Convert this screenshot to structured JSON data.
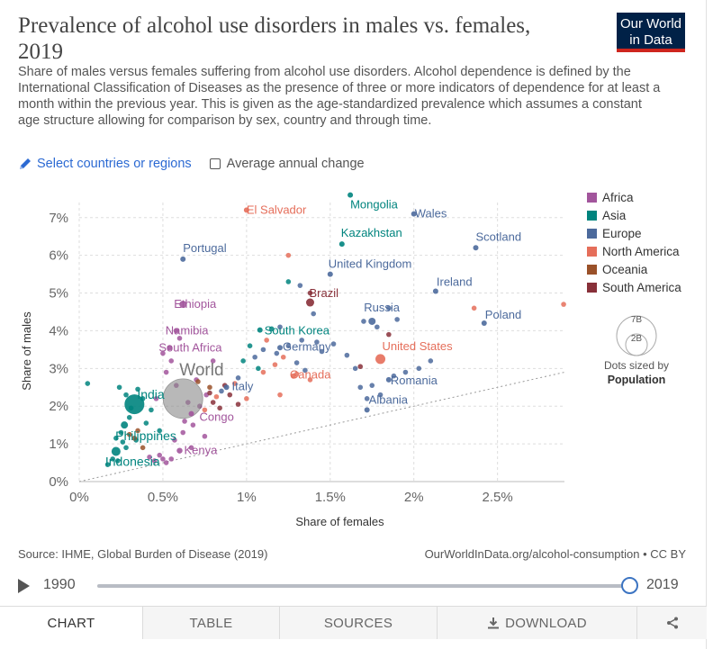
{
  "header": {
    "title": "Prevalence of alcohol use disorders in males vs. females, 2019",
    "subtitle": "Share of males versus females suffering from alcohol use disorders. Alcohol dependence is defined by the International Classification of Diseases as the presence of three or more indicators of dependence for at least a month within the previous year. This is given as the age-standardized prevalence which assumes a constant age structure allowing for comparison by sex, country and through time.",
    "logo_line1": "Our World",
    "logo_line2": "in Data"
  },
  "controls": {
    "select_label": "Select countries or regions",
    "select_icon": "pencil-icon",
    "average_change_label": "Average annual change",
    "average_change_checked": false
  },
  "chart_data": {
    "type": "scatter",
    "xlabel": "Share of females",
    "ylabel": "Share of males",
    "xlim": [
      0,
      2.9
    ],
    "ylim": [
      0,
      7.4
    ],
    "x_ticks": [
      {
        "v": 0,
        "label": "0%"
      },
      {
        "v": 0.5,
        "label": "0.5%"
      },
      {
        "v": 1,
        "label": "1%"
      },
      {
        "v": 1.5,
        "label": "1.5%"
      },
      {
        "v": 2,
        "label": "2%"
      },
      {
        "v": 2.5,
        "label": "2.5%"
      }
    ],
    "y_ticks": [
      {
        "v": 0,
        "label": "0%"
      },
      {
        "v": 1,
        "label": "1%"
      },
      {
        "v": 2,
        "label": "2%"
      },
      {
        "v": 3,
        "label": "3%"
      },
      {
        "v": 4,
        "label": "4%"
      },
      {
        "v": 5,
        "label": "5%"
      },
      {
        "v": 6,
        "label": "6%"
      },
      {
        "v": 7,
        "label": "7%"
      }
    ],
    "grid": true,
    "reference_line": "y = x (dotted diagonal)",
    "legend_position": "right",
    "legend": [
      {
        "name": "Africa",
        "color": "#a2559c"
      },
      {
        "name": "Asia",
        "color": "#00847e"
      },
      {
        "name": "Europe",
        "color": "#4c6a9c"
      },
      {
        "name": "North America",
        "color": "#e56e5a"
      },
      {
        "name": "Oceania",
        "color": "#9a5129"
      },
      {
        "name": "South America",
        "color": "#883039"
      }
    ],
    "size_legend": {
      "large_label": "7B",
      "small_label": "2B",
      "caption_line1": "Dots sized by",
      "caption_line2": "Population"
    },
    "labeled_points": [
      {
        "name": "World",
        "x": 0.62,
        "y": 2.2,
        "region": "World"
      },
      {
        "name": "India",
        "x": 0.33,
        "y": 2.05,
        "region": "Asia"
      },
      {
        "name": "Philippines",
        "x": 0.27,
        "y": 1.5,
        "region": "Asia"
      },
      {
        "name": "Indonesia",
        "x": 0.22,
        "y": 0.8,
        "region": "Asia"
      },
      {
        "name": "Kenya",
        "x": 0.6,
        "y": 0.82,
        "region": "Africa"
      },
      {
        "name": "Congo",
        "x": 0.67,
        "y": 1.8,
        "region": "Africa"
      },
      {
        "name": "Italy",
        "x": 0.88,
        "y": 2.5,
        "region": "Europe"
      },
      {
        "name": "South Africa",
        "x": 0.54,
        "y": 3.55,
        "region": "Africa"
      },
      {
        "name": "Namibia",
        "x": 0.58,
        "y": 4.0,
        "region": "Africa"
      },
      {
        "name": "Ethiopia",
        "x": 0.62,
        "y": 4.7,
        "region": "Africa"
      },
      {
        "name": "Portugal",
        "x": 0.62,
        "y": 5.9,
        "region": "Europe"
      },
      {
        "name": "El Salvador",
        "x": 1.0,
        "y": 7.2,
        "region": "North America"
      },
      {
        "name": "Mongolia",
        "x": 1.62,
        "y": 7.6,
        "region": "Asia"
      },
      {
        "name": "Wales",
        "x": 2.0,
        "y": 7.1,
        "region": "Europe"
      },
      {
        "name": "Kazakhstan",
        "x": 1.57,
        "y": 6.3,
        "region": "Asia"
      },
      {
        "name": "Scotland",
        "x": 2.37,
        "y": 6.2,
        "region": "Europe"
      },
      {
        "name": "United Kingdom",
        "x": 1.5,
        "y": 5.5,
        "region": "Europe"
      },
      {
        "name": "Ireland",
        "x": 2.13,
        "y": 5.05,
        "region": "Europe"
      },
      {
        "name": "Brazil",
        "x": 1.38,
        "y": 4.75,
        "region": "South America"
      },
      {
        "name": "Russia",
        "x": 1.75,
        "y": 4.25,
        "region": "Europe"
      },
      {
        "name": "Poland",
        "x": 2.42,
        "y": 4.2,
        "region": "Europe"
      },
      {
        "name": "South Korea",
        "x": 1.08,
        "y": 4.02,
        "region": "Asia"
      },
      {
        "name": "Germany",
        "x": 1.2,
        "y": 3.55,
        "region": "Europe"
      },
      {
        "name": "United States",
        "x": 1.8,
        "y": 3.25,
        "region": "North America"
      },
      {
        "name": "Canada",
        "x": 1.28,
        "y": 2.8,
        "region": "North America"
      },
      {
        "name": "Romania",
        "x": 1.85,
        "y": 2.7,
        "region": "Europe"
      },
      {
        "name": "Albania",
        "x": 1.72,
        "y": 1.9,
        "region": "Europe"
      }
    ],
    "unlabeled_points": [
      {
        "x": 0.05,
        "y": 2.6,
        "r": "Asia"
      },
      {
        "x": 0.24,
        "y": 2.5,
        "r": "Asia"
      },
      {
        "x": 0.28,
        "y": 2.3,
        "r": "Asia"
      },
      {
        "x": 0.35,
        "y": 2.45,
        "r": "Asia"
      },
      {
        "x": 0.38,
        "y": 2.2,
        "r": "Asia"
      },
      {
        "x": 0.31,
        "y": 1.95,
        "r": "Asia"
      },
      {
        "x": 0.22,
        "y": 1.15,
        "r": "Asia"
      },
      {
        "x": 0.25,
        "y": 1.3,
        "r": "Asia"
      },
      {
        "x": 0.28,
        "y": 0.9,
        "r": "Asia"
      },
      {
        "x": 0.2,
        "y": 0.6,
        "r": "Asia"
      },
      {
        "x": 0.17,
        "y": 0.45,
        "r": "Asia"
      },
      {
        "x": 0.23,
        "y": 0.55,
        "r": "Asia"
      },
      {
        "x": 0.4,
        "y": 1.55,
        "r": "Asia"
      },
      {
        "x": 0.48,
        "y": 1.35,
        "r": "Asia"
      },
      {
        "x": 0.3,
        "y": 1.7,
        "r": "Asia"
      },
      {
        "x": 0.43,
        "y": 1.9,
        "r": "Asia"
      },
      {
        "x": 0.34,
        "y": 1.1,
        "r": "Asia"
      },
      {
        "x": 0.26,
        "y": 1.05,
        "r": "Asia"
      },
      {
        "x": 1.15,
        "y": 4.05,
        "r": "Asia"
      },
      {
        "x": 1.02,
        "y": 3.6,
        "r": "Asia"
      },
      {
        "x": 0.98,
        "y": 3.2,
        "r": "Asia"
      },
      {
        "x": 1.25,
        "y": 5.3,
        "r": "Asia"
      },
      {
        "x": 1.07,
        "y": 3.0,
        "r": "Asia"
      },
      {
        "x": 0.5,
        "y": 0.6,
        "r": "Africa"
      },
      {
        "x": 0.45,
        "y": 0.55,
        "r": "Africa"
      },
      {
        "x": 0.52,
        "y": 0.5,
        "r": "Africa"
      },
      {
        "x": 0.48,
        "y": 0.7,
        "r": "Africa"
      },
      {
        "x": 0.55,
        "y": 0.6,
        "r": "Africa"
      },
      {
        "x": 0.42,
        "y": 0.65,
        "r": "Africa"
      },
      {
        "x": 0.57,
        "y": 1.1,
        "r": "Africa"
      },
      {
        "x": 0.62,
        "y": 1.3,
        "r": "Africa"
      },
      {
        "x": 0.68,
        "y": 1.5,
        "r": "Africa"
      },
      {
        "x": 0.58,
        "y": 2.55,
        "r": "Africa"
      },
      {
        "x": 0.52,
        "y": 2.9,
        "r": "Africa"
      },
      {
        "x": 0.55,
        "y": 3.2,
        "r": "Africa"
      },
      {
        "x": 0.6,
        "y": 3.8,
        "r": "Africa"
      },
      {
        "x": 0.65,
        "y": 2.1,
        "r": "Africa"
      },
      {
        "x": 0.72,
        "y": 2.0,
        "r": "Africa"
      },
      {
        "x": 0.5,
        "y": 3.4,
        "r": "Africa"
      },
      {
        "x": 0.7,
        "y": 2.7,
        "r": "Africa"
      },
      {
        "x": 0.76,
        "y": 2.3,
        "r": "Africa"
      },
      {
        "x": 0.46,
        "y": 2.2,
        "r": "Africa"
      },
      {
        "x": 0.8,
        "y": 3.2,
        "r": "Africa"
      },
      {
        "x": 0.63,
        "y": 1.6,
        "r": "Africa"
      },
      {
        "x": 0.75,
        "y": 1.2,
        "r": "Africa"
      },
      {
        "x": 0.67,
        "y": 0.9,
        "r": "Africa"
      },
      {
        "x": 1.32,
        "y": 5.2,
        "r": "Europe"
      },
      {
        "x": 1.4,
        "y": 4.45,
        "r": "Europe"
      },
      {
        "x": 1.2,
        "y": 4.1,
        "r": "Europe"
      },
      {
        "x": 1.33,
        "y": 3.75,
        "r": "Europe"
      },
      {
        "x": 1.1,
        "y": 3.5,
        "r": "Europe"
      },
      {
        "x": 1.05,
        "y": 3.3,
        "r": "Europe"
      },
      {
        "x": 1.18,
        "y": 3.4,
        "r": "Europe"
      },
      {
        "x": 0.95,
        "y": 2.75,
        "r": "Europe"
      },
      {
        "x": 0.85,
        "y": 2.4,
        "r": "Europe"
      },
      {
        "x": 1.25,
        "y": 3.6,
        "r": "Europe"
      },
      {
        "x": 1.45,
        "y": 3.45,
        "r": "Europe"
      },
      {
        "x": 1.52,
        "y": 3.65,
        "r": "Europe"
      },
      {
        "x": 1.7,
        "y": 4.25,
        "r": "Europe"
      },
      {
        "x": 1.78,
        "y": 4.1,
        "r": "Europe"
      },
      {
        "x": 1.85,
        "y": 4.6,
        "r": "Europe"
      },
      {
        "x": 1.9,
        "y": 4.3,
        "r": "Europe"
      },
      {
        "x": 1.65,
        "y": 3.0,
        "r": "Europe"
      },
      {
        "x": 1.75,
        "y": 2.55,
        "r": "Europe"
      },
      {
        "x": 1.88,
        "y": 2.8,
        "r": "Europe"
      },
      {
        "x": 1.95,
        "y": 2.9,
        "r": "Europe"
      },
      {
        "x": 2.03,
        "y": 3.0,
        "r": "Europe"
      },
      {
        "x": 1.72,
        "y": 2.2,
        "r": "Europe"
      },
      {
        "x": 1.68,
        "y": 2.5,
        "r": "Europe"
      },
      {
        "x": 1.6,
        "y": 3.35,
        "r": "Europe"
      },
      {
        "x": 1.35,
        "y": 2.95,
        "r": "Europe"
      },
      {
        "x": 1.3,
        "y": 3.15,
        "r": "Europe"
      },
      {
        "x": 1.42,
        "y": 3.7,
        "r": "Europe"
      },
      {
        "x": 2.1,
        "y": 3.2,
        "r": "Europe"
      },
      {
        "x": 1.8,
        "y": 2.3,
        "r": "Europe"
      },
      {
        "x": 1.25,
        "y": 6.0,
        "r": "North America"
      },
      {
        "x": 2.36,
        "y": 4.6,
        "r": "North America"
      },
      {
        "x": 2.9,
        "y": 4.7,
        "r": "North America"
      },
      {
        "x": 1.17,
        "y": 3.1,
        "r": "North America"
      },
      {
        "x": 1.1,
        "y": 2.9,
        "r": "North America"
      },
      {
        "x": 1.2,
        "y": 2.3,
        "r": "North America"
      },
      {
        "x": 1.3,
        "y": 2.85,
        "r": "North America"
      },
      {
        "x": 1.22,
        "y": 3.3,
        "r": "North America"
      },
      {
        "x": 1.0,
        "y": 2.2,
        "r": "North America"
      },
      {
        "x": 0.82,
        "y": 2.25,
        "r": "North America"
      },
      {
        "x": 0.75,
        "y": 1.9,
        "r": "North America"
      },
      {
        "x": 1.12,
        "y": 3.75,
        "r": "North America"
      },
      {
        "x": 1.38,
        "y": 2.7,
        "r": "North America"
      },
      {
        "x": 0.93,
        "y": 2.6,
        "r": "North America"
      },
      {
        "x": 0.3,
        "y": 1.25,
        "r": "Oceania"
      },
      {
        "x": 0.33,
        "y": 1.15,
        "r": "Oceania"
      },
      {
        "x": 0.38,
        "y": 0.9,
        "r": "Oceania"
      },
      {
        "x": 0.35,
        "y": 1.35,
        "r": "Oceania"
      },
      {
        "x": 0.71,
        "y": 2.65,
        "r": "Oceania"
      },
      {
        "x": 0.78,
        "y": 2.5,
        "r": "Oceania"
      },
      {
        "x": 1.38,
        "y": 5.0,
        "r": "South America"
      },
      {
        "x": 0.8,
        "y": 2.1,
        "r": "South America"
      },
      {
        "x": 0.84,
        "y": 1.95,
        "r": "South America"
      },
      {
        "x": 0.9,
        "y": 2.3,
        "r": "South America"
      },
      {
        "x": 0.78,
        "y": 2.35,
        "r": "South America"
      },
      {
        "x": 0.87,
        "y": 2.55,
        "r": "South America"
      },
      {
        "x": 0.95,
        "y": 2.05,
        "r": "South America"
      },
      {
        "x": 1.68,
        "y": 3.05,
        "r": "South America"
      },
      {
        "x": 1.85,
        "y": 3.9,
        "r": "South America"
      }
    ]
  },
  "footer": {
    "source": "Source: IHME, Global Burden of Disease (2019)",
    "url": "OurWorldInData.org/alcohol-consumption • CC BY"
  },
  "timeline": {
    "start_year": "1990",
    "end_year": "2019",
    "play_icon": "play-icon"
  },
  "tabs": [
    {
      "label": "CHART",
      "active": true
    },
    {
      "label": "TABLE",
      "active": false
    },
    {
      "label": "SOURCES",
      "active": false
    },
    {
      "label": "DOWNLOAD",
      "active": false,
      "icon": "download-icon"
    },
    {
      "label": "",
      "icon": "share-icon"
    }
  ]
}
